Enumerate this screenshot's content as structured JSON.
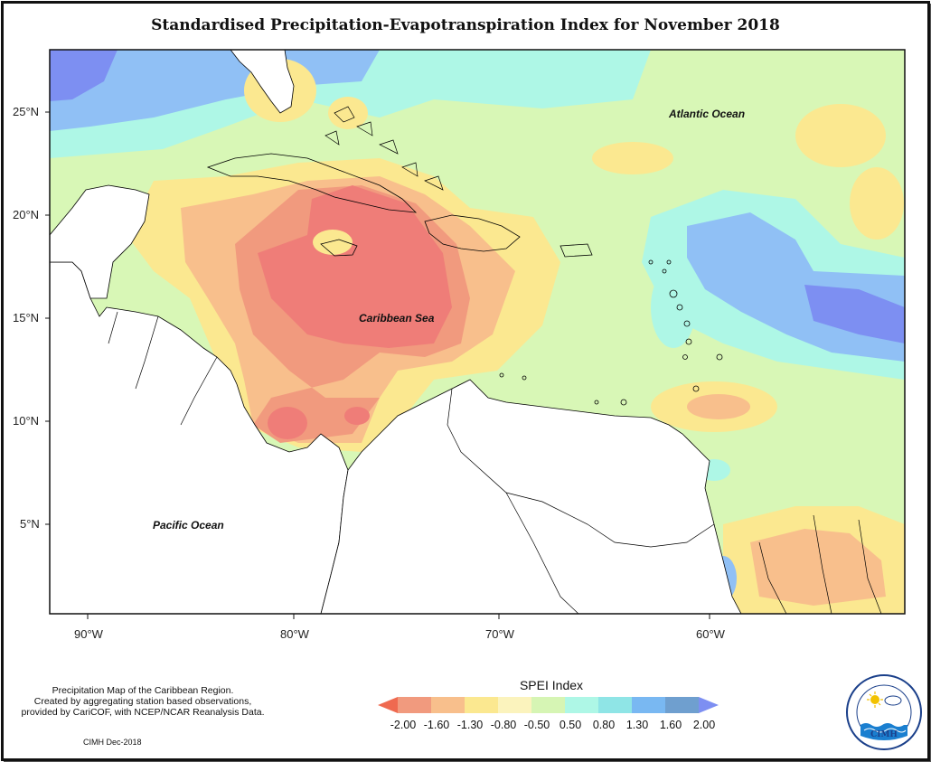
{
  "title": "Standardised Precipitation-Evapotranspiration Index for November 2018",
  "map": {
    "x_axis": {
      "ticks": [
        "90°W",
        "80°W",
        "70°W",
        "60°W"
      ],
      "range": [
        -92,
        -50
      ]
    },
    "y_axis": {
      "ticks": [
        "25°N",
        "20°N",
        "15°N",
        "10°N",
        "5°N"
      ],
      "range": [
        1,
        28
      ]
    },
    "labels": {
      "atlantic": "Atlantic Ocean",
      "caribbean": "Caribbean Sea",
      "pacific": "Pacific Ocean"
    },
    "land_color": "#ffffff",
    "outline_color": "#000000"
  },
  "notes": [
    "Precipitation Map of the Caribbean Region.",
    "Created by aggregating station based observations,",
    "provided by CariCOF, with NCEP/NCAR Reanalysis Data."
  ],
  "credit": "CIMH Dec-2018",
  "legend": {
    "title": "SPEI Index",
    "tick_labels": [
      "-2.00",
      "-1.60",
      "-1.30",
      "-0.80",
      "-0.50",
      "0.50",
      "0.80",
      "1.30",
      "1.60",
      "2.00"
    ],
    "colors": [
      "#ef6a50",
      "#f19a7e",
      "#f8bf8c",
      "#fbe890",
      "#fbf3bd",
      "#d6f5b4",
      "#aef7e6",
      "#8fe5e6",
      "#79b8f2",
      "#6f9fcf",
      "#7d8ff2"
    ]
  },
  "logo": {
    "text": "CIMH",
    "icon": "cimh-logo-icon"
  }
}
